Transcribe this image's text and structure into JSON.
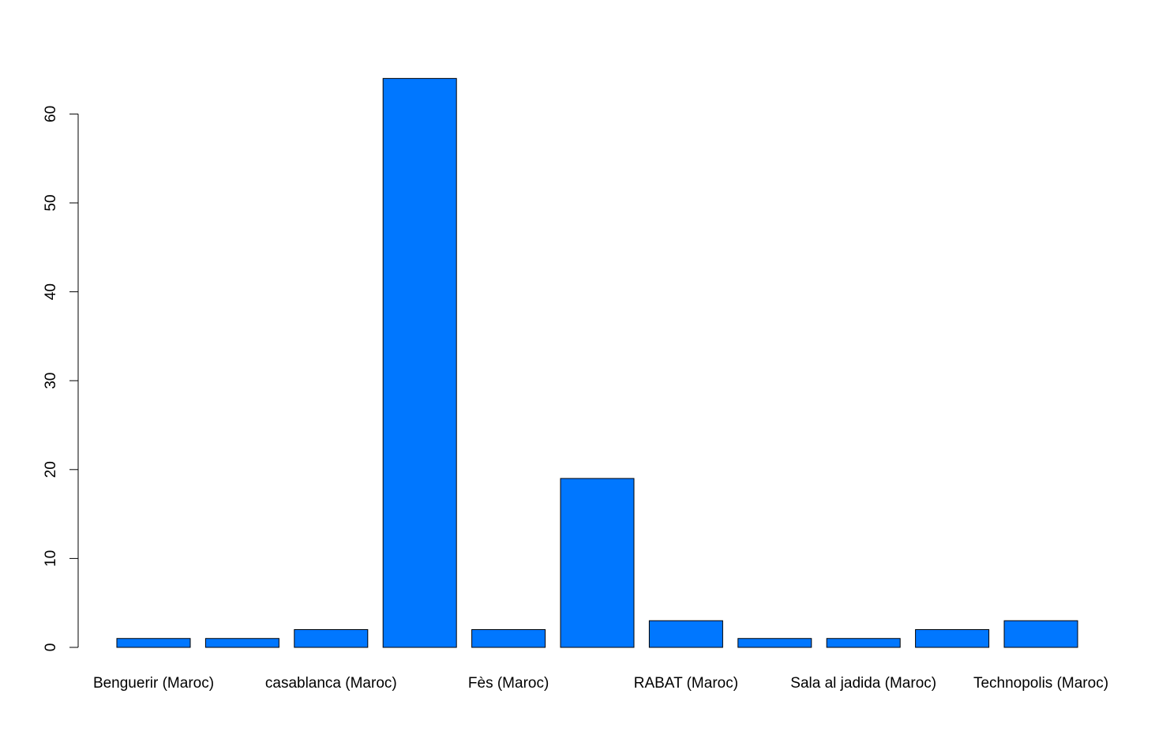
{
  "chart_data": {
    "type": "bar",
    "categories": [
      "Benguerir (Maroc)",
      "",
      "casablanca (Maroc)",
      "",
      "Fès (Maroc)",
      "",
      "RABAT (Maroc)",
      "",
      "Sala al jadida (Maroc)",
      "",
      "Technopolis (Maroc)"
    ],
    "values": [
      1,
      1,
      2,
      64,
      2,
      19,
      3,
      1,
      1,
      2,
      3
    ],
    "title": "",
    "xlabel": "",
    "ylabel": "",
    "ylim": [
      0,
      60
    ],
    "yticks": [
      0,
      10,
      20,
      30,
      40,
      50,
      60
    ],
    "bar_color": "#0077FF",
    "grid": false
  }
}
